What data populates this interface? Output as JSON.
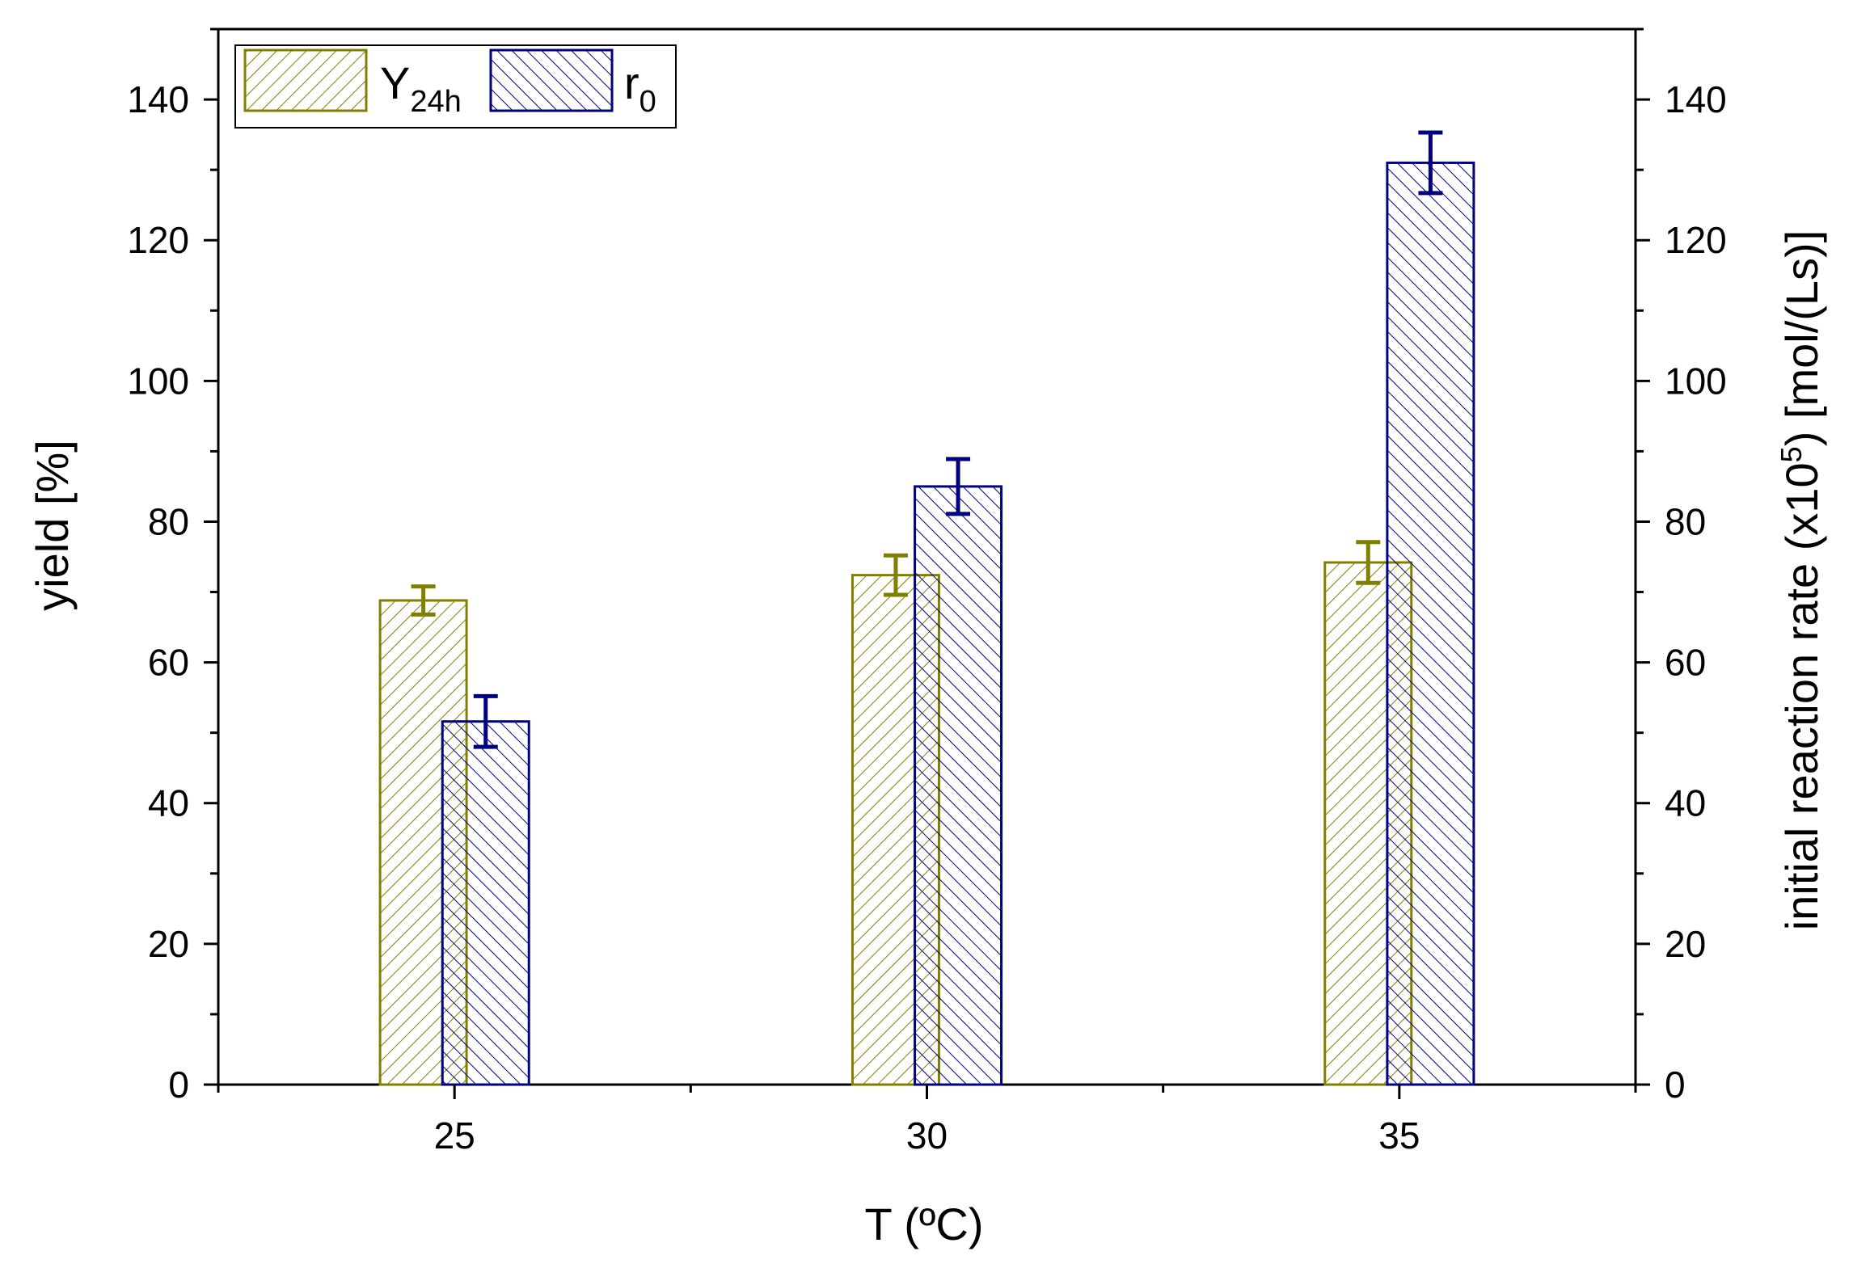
{
  "chart_data": {
    "type": "bar",
    "title": "",
    "xlabel": "T (ºC)",
    "ylabel": "yield [%]",
    "ylabel_right": {
      "base": "initial reaction rate (x10",
      "sup": "5",
      "rest": ") [mol/(Ls)]"
    },
    "categories": [
      "25",
      "30",
      "35"
    ],
    "xlim": [
      22.5,
      37.5
    ],
    "ylim": [
      0,
      150
    ],
    "ylim_right": [
      0,
      150
    ],
    "yticks": [
      0,
      20,
      40,
      60,
      80,
      100,
      120,
      140
    ],
    "series": [
      {
        "name": "Y24h",
        "legend_main": "Y",
        "legend_sub": "24h",
        "axis": "left",
        "color": "#808000",
        "hatch": "forward",
        "values": [
          68.8,
          72.4,
          74.2
        ],
        "errors": [
          2.0,
          2.8,
          2.9
        ]
      },
      {
        "name": "r0",
        "legend_main": "r",
        "legend_sub": "0",
        "axis": "right",
        "color": "#000080",
        "hatch": "backward",
        "values": [
          51.6,
          85.0,
          131.0
        ],
        "errors": [
          3.6,
          3.9,
          4.3
        ]
      }
    ],
    "grid": false,
    "legend_position": "top-left"
  }
}
